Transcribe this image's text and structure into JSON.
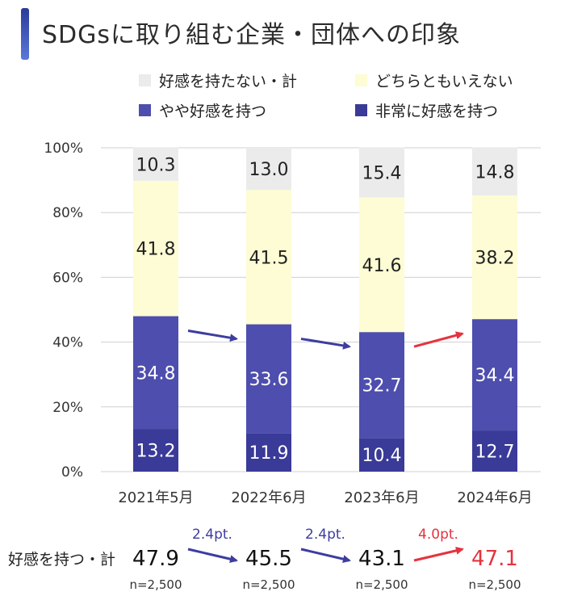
{
  "title": "SDGsに取り組む企業・団体への印象",
  "chart_data": {
    "type": "bar",
    "stacked": true,
    "categories": [
      "2021年5月",
      "2022年6月",
      "2023年6月",
      "2024年6月"
    ],
    "series": [
      {
        "name": "非常に好感を持つ",
        "color": "#3a3a98",
        "values": [
          13.2,
          11.9,
          10.4,
          12.7
        ]
      },
      {
        "name": "やや好感を持つ",
        "color": "#4e4eae",
        "values": [
          34.8,
          33.6,
          32.7,
          34.4
        ]
      },
      {
        "name": "どちらともいえない",
        "color": "#fdfcd4",
        "values": [
          41.8,
          41.5,
          41.6,
          38.2
        ]
      },
      {
        "name": "好感を持たない・計",
        "color": "#ebebeb",
        "values": [
          10.3,
          13.0,
          15.4,
          14.8
        ]
      }
    ],
    "ylim": [
      0,
      100
    ],
    "yticks": [
      "0%",
      "20%",
      "40%",
      "60%",
      "80%",
      "100%"
    ],
    "legend_position": "top",
    "summary": {
      "label": "好感を持つ・計",
      "values": [
        "47.9",
        "45.5",
        "43.1",
        "47.1"
      ],
      "changes": [
        "2.4pt.",
        "2.4pt.",
        "4.0pt."
      ],
      "change_direction": [
        "down",
        "down",
        "up"
      ],
      "n_labels": [
        "n=2,500",
        "n=2,500",
        "n=2,500",
        "n=2,500"
      ]
    },
    "colors": {
      "down": "#3d3da0",
      "up": "#e5333f",
      "grid": "#d0d0d0",
      "axis_text": "#333333"
    }
  }
}
